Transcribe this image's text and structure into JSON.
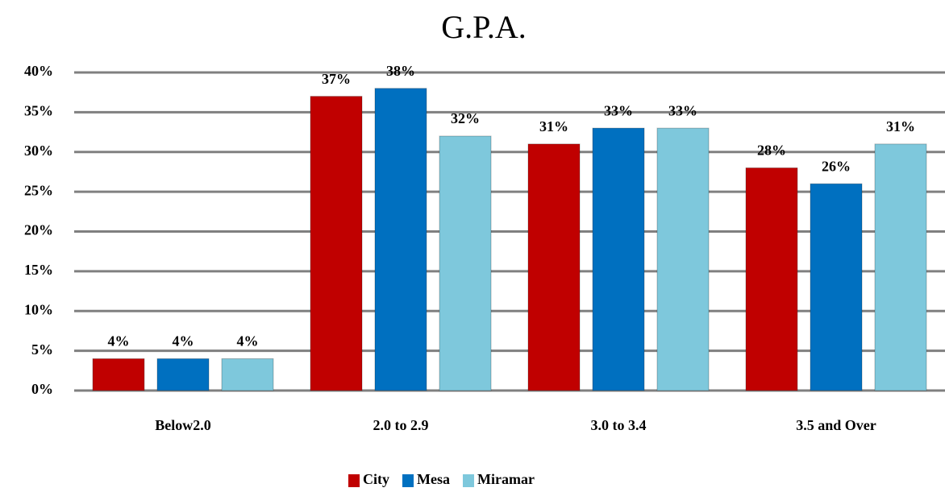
{
  "chart_data": {
    "type": "bar",
    "title": "G.P.A.",
    "categories": [
      "Below2.0",
      "2.0 to 2.9",
      "3.0 to 3.4",
      "3.5 and Over"
    ],
    "series": [
      {
        "name": "City",
        "color": "#c00000",
        "values": [
          4,
          37,
          31,
          28
        ],
        "value_labels": [
          "4%",
          "37%",
          "31%",
          "28%"
        ]
      },
      {
        "name": "Mesa",
        "color": "#0070c0",
        "values": [
          4,
          38,
          33,
          26
        ],
        "value_labels": [
          "4%",
          "38%",
          "33%",
          "26%"
        ]
      },
      {
        "name": "Miramar",
        "color": "#7ec8dc",
        "values": [
          4,
          32,
          33,
          31
        ],
        "value_labels": [
          "4%",
          "32%",
          "33%",
          "31%"
        ]
      }
    ],
    "ylim": [
      0,
      40
    ],
    "yticks": [
      {
        "value": 0,
        "label": "0%"
      },
      {
        "value": 5,
        "label": "5%"
      },
      {
        "value": 10,
        "label": "10%"
      },
      {
        "value": 15,
        "label": "15%"
      },
      {
        "value": 20,
        "label": "20%"
      },
      {
        "value": 25,
        "label": "25%"
      },
      {
        "value": 30,
        "label": "30%"
      },
      {
        "value": 35,
        "label": "35%"
      },
      {
        "value": 40,
        "label": "40%"
      }
    ],
    "grid": true,
    "legend": "bottom"
  }
}
